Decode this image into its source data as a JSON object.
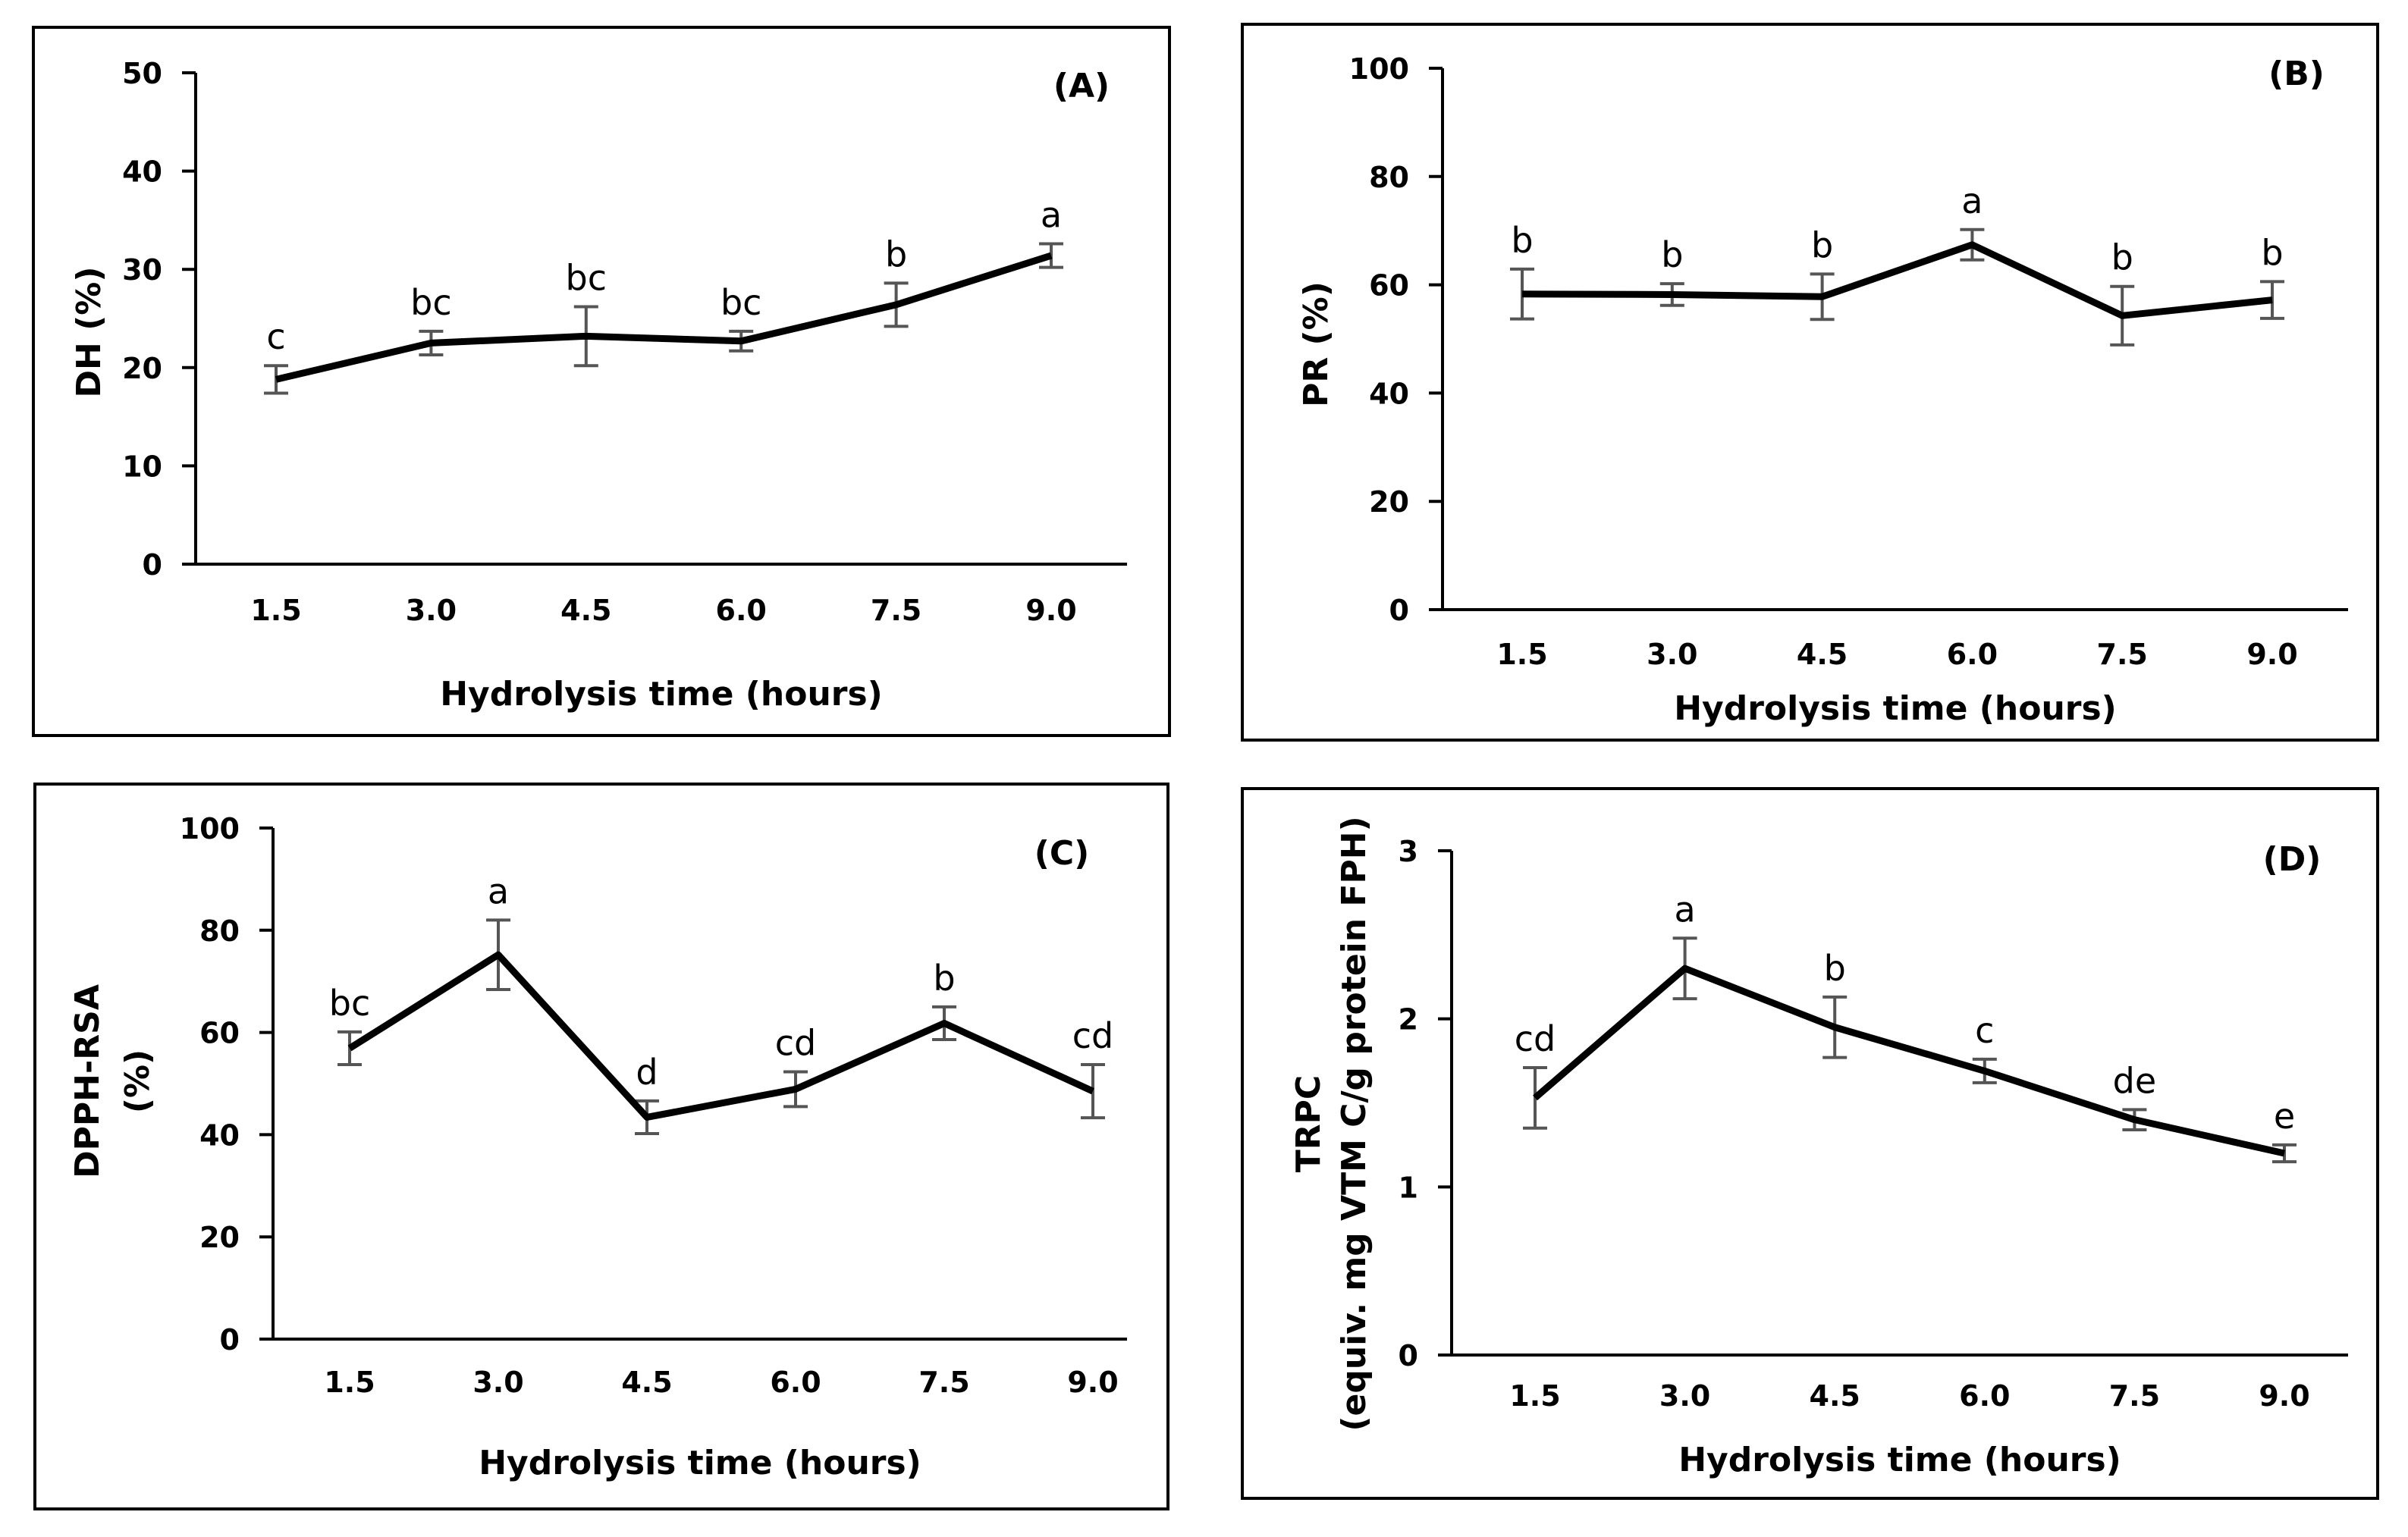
{
  "chart_data": [
    {
      "type": "line",
      "panel_label": "(A)",
      "xlabel": "Hydrolysis time (hours)",
      "ylabel": [
        "DH (%)"
      ],
      "categories": [
        "1.5",
        "3.0",
        "4.5",
        "6.0",
        "7.5",
        "9.0"
      ],
      "values": [
        18.8,
        22.5,
        23.2,
        22.7,
        26.4,
        31.4
      ],
      "errors": [
        1.4,
        1.2,
        3.0,
        1.0,
        2.2,
        1.2
      ],
      "letters": [
        "c",
        "bc",
        "bc",
        "bc",
        "b",
        "a"
      ],
      "ylim": [
        0,
        50
      ],
      "yticks": [
        "0",
        "10",
        "20",
        "30",
        "40",
        "50"
      ],
      "grid": false
    },
    {
      "type": "line",
      "panel_label": "(B)",
      "xlabel": "Hydrolysis time (hours)",
      "ylabel": [
        "PR (%)"
      ],
      "categories": [
        "1.5",
        "3.0",
        "4.5",
        "6.0",
        "7.5",
        "9.0"
      ],
      "values": [
        58.3,
        58.2,
        57.8,
        67.4,
        54.3,
        57.2
      ],
      "errors": [
        4.6,
        2.0,
        4.2,
        2.8,
        5.4,
        3.4
      ],
      "letters": [
        "b",
        "b",
        "b",
        "a",
        "b",
        "b"
      ],
      "ylim": [
        0,
        100
      ],
      "yticks": [
        "0",
        "20",
        "40",
        "60",
        "80",
        "100"
      ],
      "grid": false
    },
    {
      "type": "line",
      "panel_label": "(C)",
      "xlabel": "Hydrolysis time (hours)",
      "ylabel": [
        "DPPH-RSA",
        "(%)"
      ],
      "categories": [
        "1.5",
        "3.0",
        "4.5",
        "6.0",
        "7.5",
        "9.0"
      ],
      "values": [
        56.9,
        75.2,
        43.4,
        48.9,
        61.8,
        48.5
      ],
      "errors": [
        3.2,
        6.8,
        3.2,
        3.4,
        3.2,
        5.2
      ],
      "letters": [
        "bc",
        "a",
        "d",
        "cd",
        "b",
        "cd"
      ],
      "ylim": [
        0,
        100
      ],
      "yticks": [
        "0",
        "20",
        "40",
        "60",
        "80",
        "100"
      ],
      "grid": false
    },
    {
      "type": "line",
      "panel_label": "(D)",
      "xlabel": "Hydrolysis time (hours)",
      "ylabel": [
        "TRPC",
        "(equiv. mg VTM C/g protein FPH)"
      ],
      "categories": [
        "1.5",
        "3.0",
        "4.5",
        "6.0",
        "7.5",
        "9.0"
      ],
      "values": [
        1.53,
        2.3,
        1.95,
        1.69,
        1.4,
        1.2
      ],
      "errors": [
        0.18,
        0.18,
        0.18,
        0.07,
        0.06,
        0.05
      ],
      "letters": [
        "cd",
        "a",
        "b",
        "c",
        "de",
        "e"
      ],
      "ylim": [
        0,
        3
      ],
      "yticks": [
        "0",
        "1",
        "2",
        "3"
      ],
      "grid": false
    }
  ]
}
